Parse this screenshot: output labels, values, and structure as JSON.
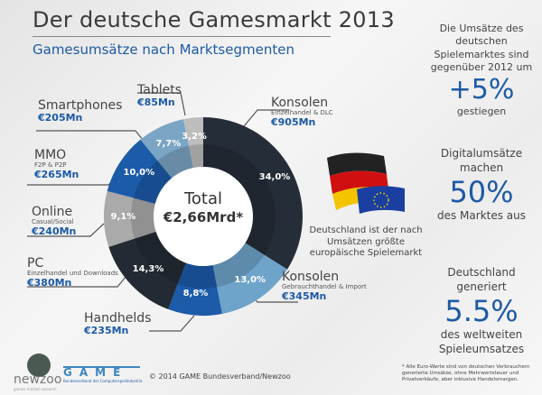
{
  "title": "Der deutsche Gamesmarkt 2013",
  "subtitle": "Gamesumsätze nach Marktsegmenten",
  "center": {
    "label": "Total",
    "value": "€2,66Mrd*"
  },
  "chart_data": {
    "type": "pie",
    "donut": true,
    "title": "Gamesumsätze nach Marktsegmenten",
    "slices": [
      {
        "name": "Konsolen",
        "sub": "Einzelhandel & DLC",
        "amount": "€905Mn",
        "value": 34.0,
        "label": "34,0%",
        "color": "#252d38"
      },
      {
        "name": "Konsolen",
        "sub": "Gebrauchthandel & Import",
        "amount": "€345Mn",
        "value": 13.0,
        "label": "13,0%",
        "color": "#6ea3ca"
      },
      {
        "name": "Handhelds",
        "sub": "",
        "amount": "€235Mn",
        "value": 8.8,
        "label": "8,8%",
        "color": "#1b5ba8"
      },
      {
        "name": "PC",
        "sub": "Einzelhandel und Downloads",
        "amount": "€380Mn",
        "value": 14.3,
        "label": "14,3%",
        "color": "#232a33"
      },
      {
        "name": "Online",
        "sub": "Casual/Social",
        "amount": "€240Mn",
        "value": 9.1,
        "label": "9,1%",
        "color": "#aaaaaa"
      },
      {
        "name": "MMO",
        "sub": "F2P & P2P",
        "amount": "€265Mn",
        "value": 10.0,
        "label": "10,0%",
        "color": "#1b5ba8"
      },
      {
        "name": "Smartphones",
        "sub": "",
        "amount": "€205Mn",
        "value": 7.7,
        "label": "7,7%",
        "color": "#7aa5c5"
      },
      {
        "name": "Tablets",
        "sub": "",
        "amount": "€85Mn",
        "value": 3.2,
        "label": "3,2%",
        "color": "#bdbdbd"
      }
    ]
  },
  "flag_text": "Deutschland ist der nach Umsätzen größte europäische Spielemarkt",
  "facts": [
    {
      "pre": "Die Umsätze des deutschen Spielemarktes sind gegenüber 2012 um",
      "big": "+5%",
      "post": "gestiegen"
    },
    {
      "pre": "Digitalumsätze machen",
      "big": "50%",
      "post": "des Marktes aus"
    },
    {
      "pre": "Deutschland generiert",
      "big": "5.5%",
      "post": "des weltweiten Spieleumsatzes"
    }
  ],
  "footer": {
    "newzoo": "newzoo",
    "newzoo_tag": "games market research",
    "game_logo": "GAME",
    "game_tag": "Bundesverband der Computerspielindustrie",
    "copyright": "© 2014 GAME Bundesverband/Newzoo",
    "note": "* Alle Euro-Werte sind von deutschen Verbrauchern generierte Umsätze, ohne Mehrwertsteuer und Privatverkäufe, aber inklusive Handelsmargen."
  }
}
